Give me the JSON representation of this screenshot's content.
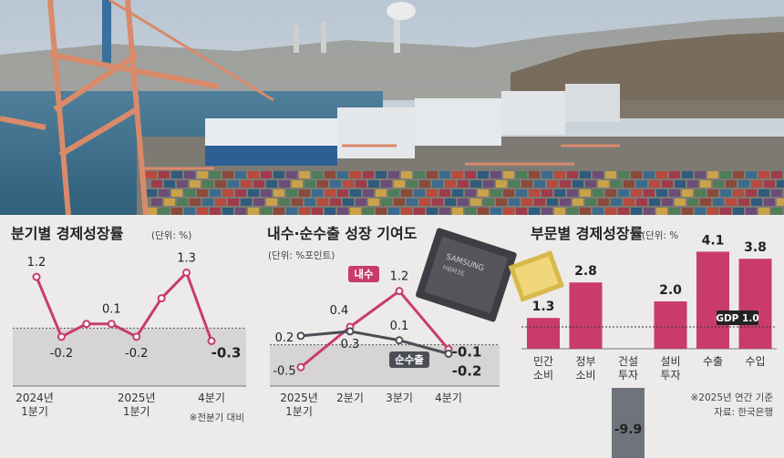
{
  "panels": {
    "quarterly": {
      "title": "분기별 경제성장률",
      "unit": "(단위: %)",
      "note": "※전분기 대비"
    },
    "contribution": {
      "title": "내수·순수출 성장 기여도",
      "unit": "(단위: %포인트)",
      "chip_brand": "SAMSUNG",
      "chip_model": "HBM3E"
    },
    "sector": {
      "title": "부문별 경제성장률",
      "unit": "(단위: %",
      "gdp_label": "GDP 1.0",
      "note": "※2025년 연간 기준",
      "source": "자료: 한국은행"
    }
  },
  "colors": {
    "primary": "#c93b6b",
    "secondary": "#4b4e56",
    "negative_bar": "#6f737c",
    "panel_bg": "#ecebe9",
    "shade": "#d6d5d3"
  },
  "chart_data": [
    {
      "type": "line",
      "title": "분기별 경제성장률",
      "x": [
        "2024년\n1분기",
        "",
        "",
        "",
        "2025년\n1분기",
        "",
        "",
        "4분기"
      ],
      "series": [
        {
          "values": [
            1.2,
            -0.2,
            0.1,
            0.1,
            -0.2,
            0.7,
            1.3,
            -0.3
          ],
          "labels": [
            "1.2",
            "-0.2",
            "",
            "0.1",
            "-0.2",
            "",
            "1.3",
            "-0.3"
          ]
        }
      ],
      "ylim": [
        -0.8,
        1.5
      ],
      "shaded_below_zero": true
    },
    {
      "type": "line",
      "title": "내수·순수출 성장 기여도",
      "x": [
        "2025년\n1분기",
        "2분기",
        "3분기",
        "4분기"
      ],
      "series": [
        {
          "name": "내수",
          "values": [
            -0.5,
            0.4,
            1.2,
            -0.1
          ],
          "labels": [
            "-0.5",
            "0.4",
            "1.2",
            "-0.1"
          ]
        },
        {
          "name": "순수출",
          "values": [
            0.2,
            0.3,
            0.1,
            -0.2
          ],
          "labels": [
            "0.2",
            "0.3",
            "0.1",
            "-0.2"
          ]
        }
      ],
      "ylim": [
        -0.8,
        1.6
      ],
      "shaded_below_zero": true
    },
    {
      "type": "bar",
      "title": "부문별 경제성장률",
      "categories": [
        "민간\n소비",
        "정부\n소비",
        "건설\n투자",
        "설비\n투자",
        "수출",
        "수입"
      ],
      "values": [
        1.3,
        2.8,
        -9.9,
        2.0,
        4.1,
        3.8
      ],
      "labels": [
        "1.3",
        "2.8",
        "-9.9",
        "2.0",
        "4.1",
        "3.8"
      ],
      "reference_line": {
        "label": "GDP 1.0",
        "value": 1.0
      }
    }
  ]
}
